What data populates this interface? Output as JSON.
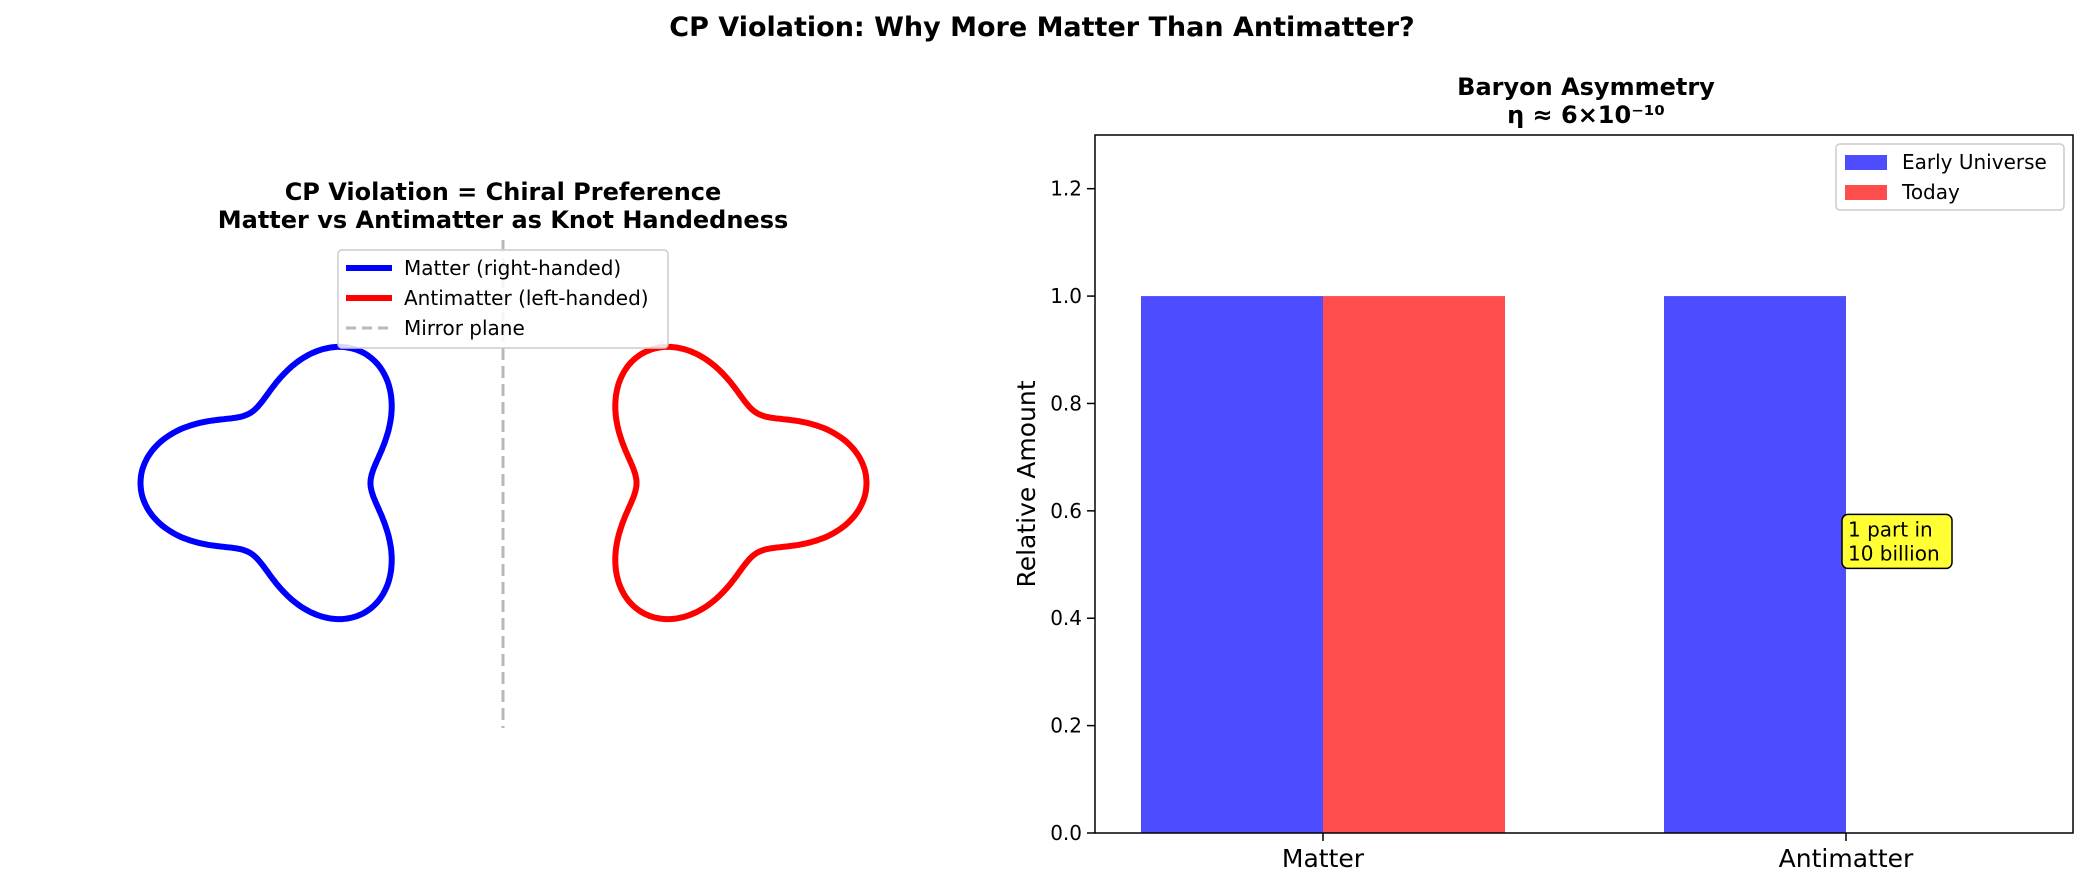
{
  "figure": {
    "suptitle": "CP Violation: Why More Matter Than Antimatter?"
  },
  "left_panel": {
    "title_line1": "CP Violation = Chiral Preference",
    "title_line2": "Matter vs Antimatter as Knot Handedness",
    "legend": [
      {
        "label": "Matter (right-handed)",
        "color": "#0000ff",
        "style": "solid"
      },
      {
        "label": "Antimatter (left-handed)",
        "color": "#ff0000",
        "style": "solid"
      },
      {
        "label": "Mirror plane",
        "color": "#b8b8b8",
        "style": "dashed"
      }
    ]
  },
  "chart_data": [
    {
      "type": "line",
      "title": "CP Violation = Chiral Preference\nMatter vs Antimatter as Knot Handedness",
      "axes_visible": false,
      "curve": "three-lobed knot projection r = 1 + 0.3·cos(3θ)",
      "series": [
        {
          "name": "Matter (right-handed)",
          "color": "#0000ff",
          "center_x": -1,
          "orientation": "lobes-left"
        },
        {
          "name": "Antimatter (left-handed)",
          "color": "#ff0000",
          "center_x": 1,
          "orientation": "lobes-right (mirror image)"
        },
        {
          "name": "Mirror plane",
          "color": "#b8b8b8",
          "line": "dashed",
          "x": 0
        }
      ],
      "legend_position": "upper center"
    },
    {
      "type": "bar",
      "title": "Baryon Asymmetry\nη ≈ 6×10⁻¹⁰",
      "categories": [
        "Matter",
        "Antimatter"
      ],
      "series": [
        {
          "name": "Early Universe",
          "color": "#4d4dff",
          "values": [
            1.0,
            1.0
          ]
        },
        {
          "name": "Today",
          "color": "#ff4d4d",
          "values": [
            1.0,
            0.0
          ]
        }
      ],
      "ylabel": "Relative Amount",
      "xlabel": "",
      "ylim": [
        0,
        1.3
      ],
      "yticks": [
        "0.0",
        "0.2",
        "0.4",
        "0.6",
        "0.8",
        "1.0",
        "1.2"
      ],
      "legend_position": "top-right",
      "annotation": {
        "text_line1": "1 part in",
        "text_line2": "10 billion",
        "background": "#ffff33",
        "at_category": "Antimatter",
        "y": 0.53
      }
    }
  ]
}
